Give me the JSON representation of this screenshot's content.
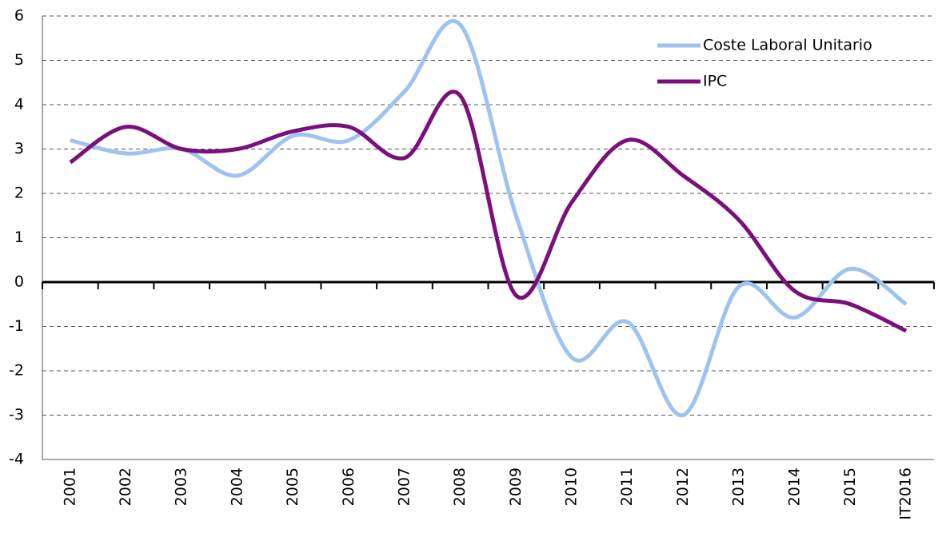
{
  "chart_data": {
    "type": "line",
    "categories": [
      "2001",
      "2002",
      "2003",
      "2004",
      "2005",
      "2006",
      "2007",
      "2008",
      "2009",
      "2010",
      "2011",
      "2012",
      "2013",
      "2014",
      "2015",
      "IT2016"
    ],
    "series": [
      {
        "name": "Coste Laboral Unitario",
        "color": "#9dc3f0",
        "values": [
          3.2,
          2.9,
          3.0,
          2.4,
          3.3,
          3.2,
          4.3,
          5.8,
          1.5,
          -1.7,
          -0.9,
          -3.0,
          -0.1,
          -0.8,
          0.3,
          -0.5
        ]
      },
      {
        "name": "IPC",
        "color": "#7b0f7b",
        "values": [
          2.7,
          3.5,
          3.0,
          3.0,
          3.4,
          3.5,
          2.8,
          4.2,
          -0.3,
          1.8,
          3.2,
          2.4,
          1.4,
          -0.2,
          -0.5,
          -1.1
        ]
      }
    ],
    "ylim": [
      -4,
      6
    ],
    "yticks": [
      -4,
      -3,
      -2,
      -1,
      0,
      1,
      2,
      3,
      4,
      5,
      6
    ],
    "grid": true,
    "legend": "top-right"
  }
}
